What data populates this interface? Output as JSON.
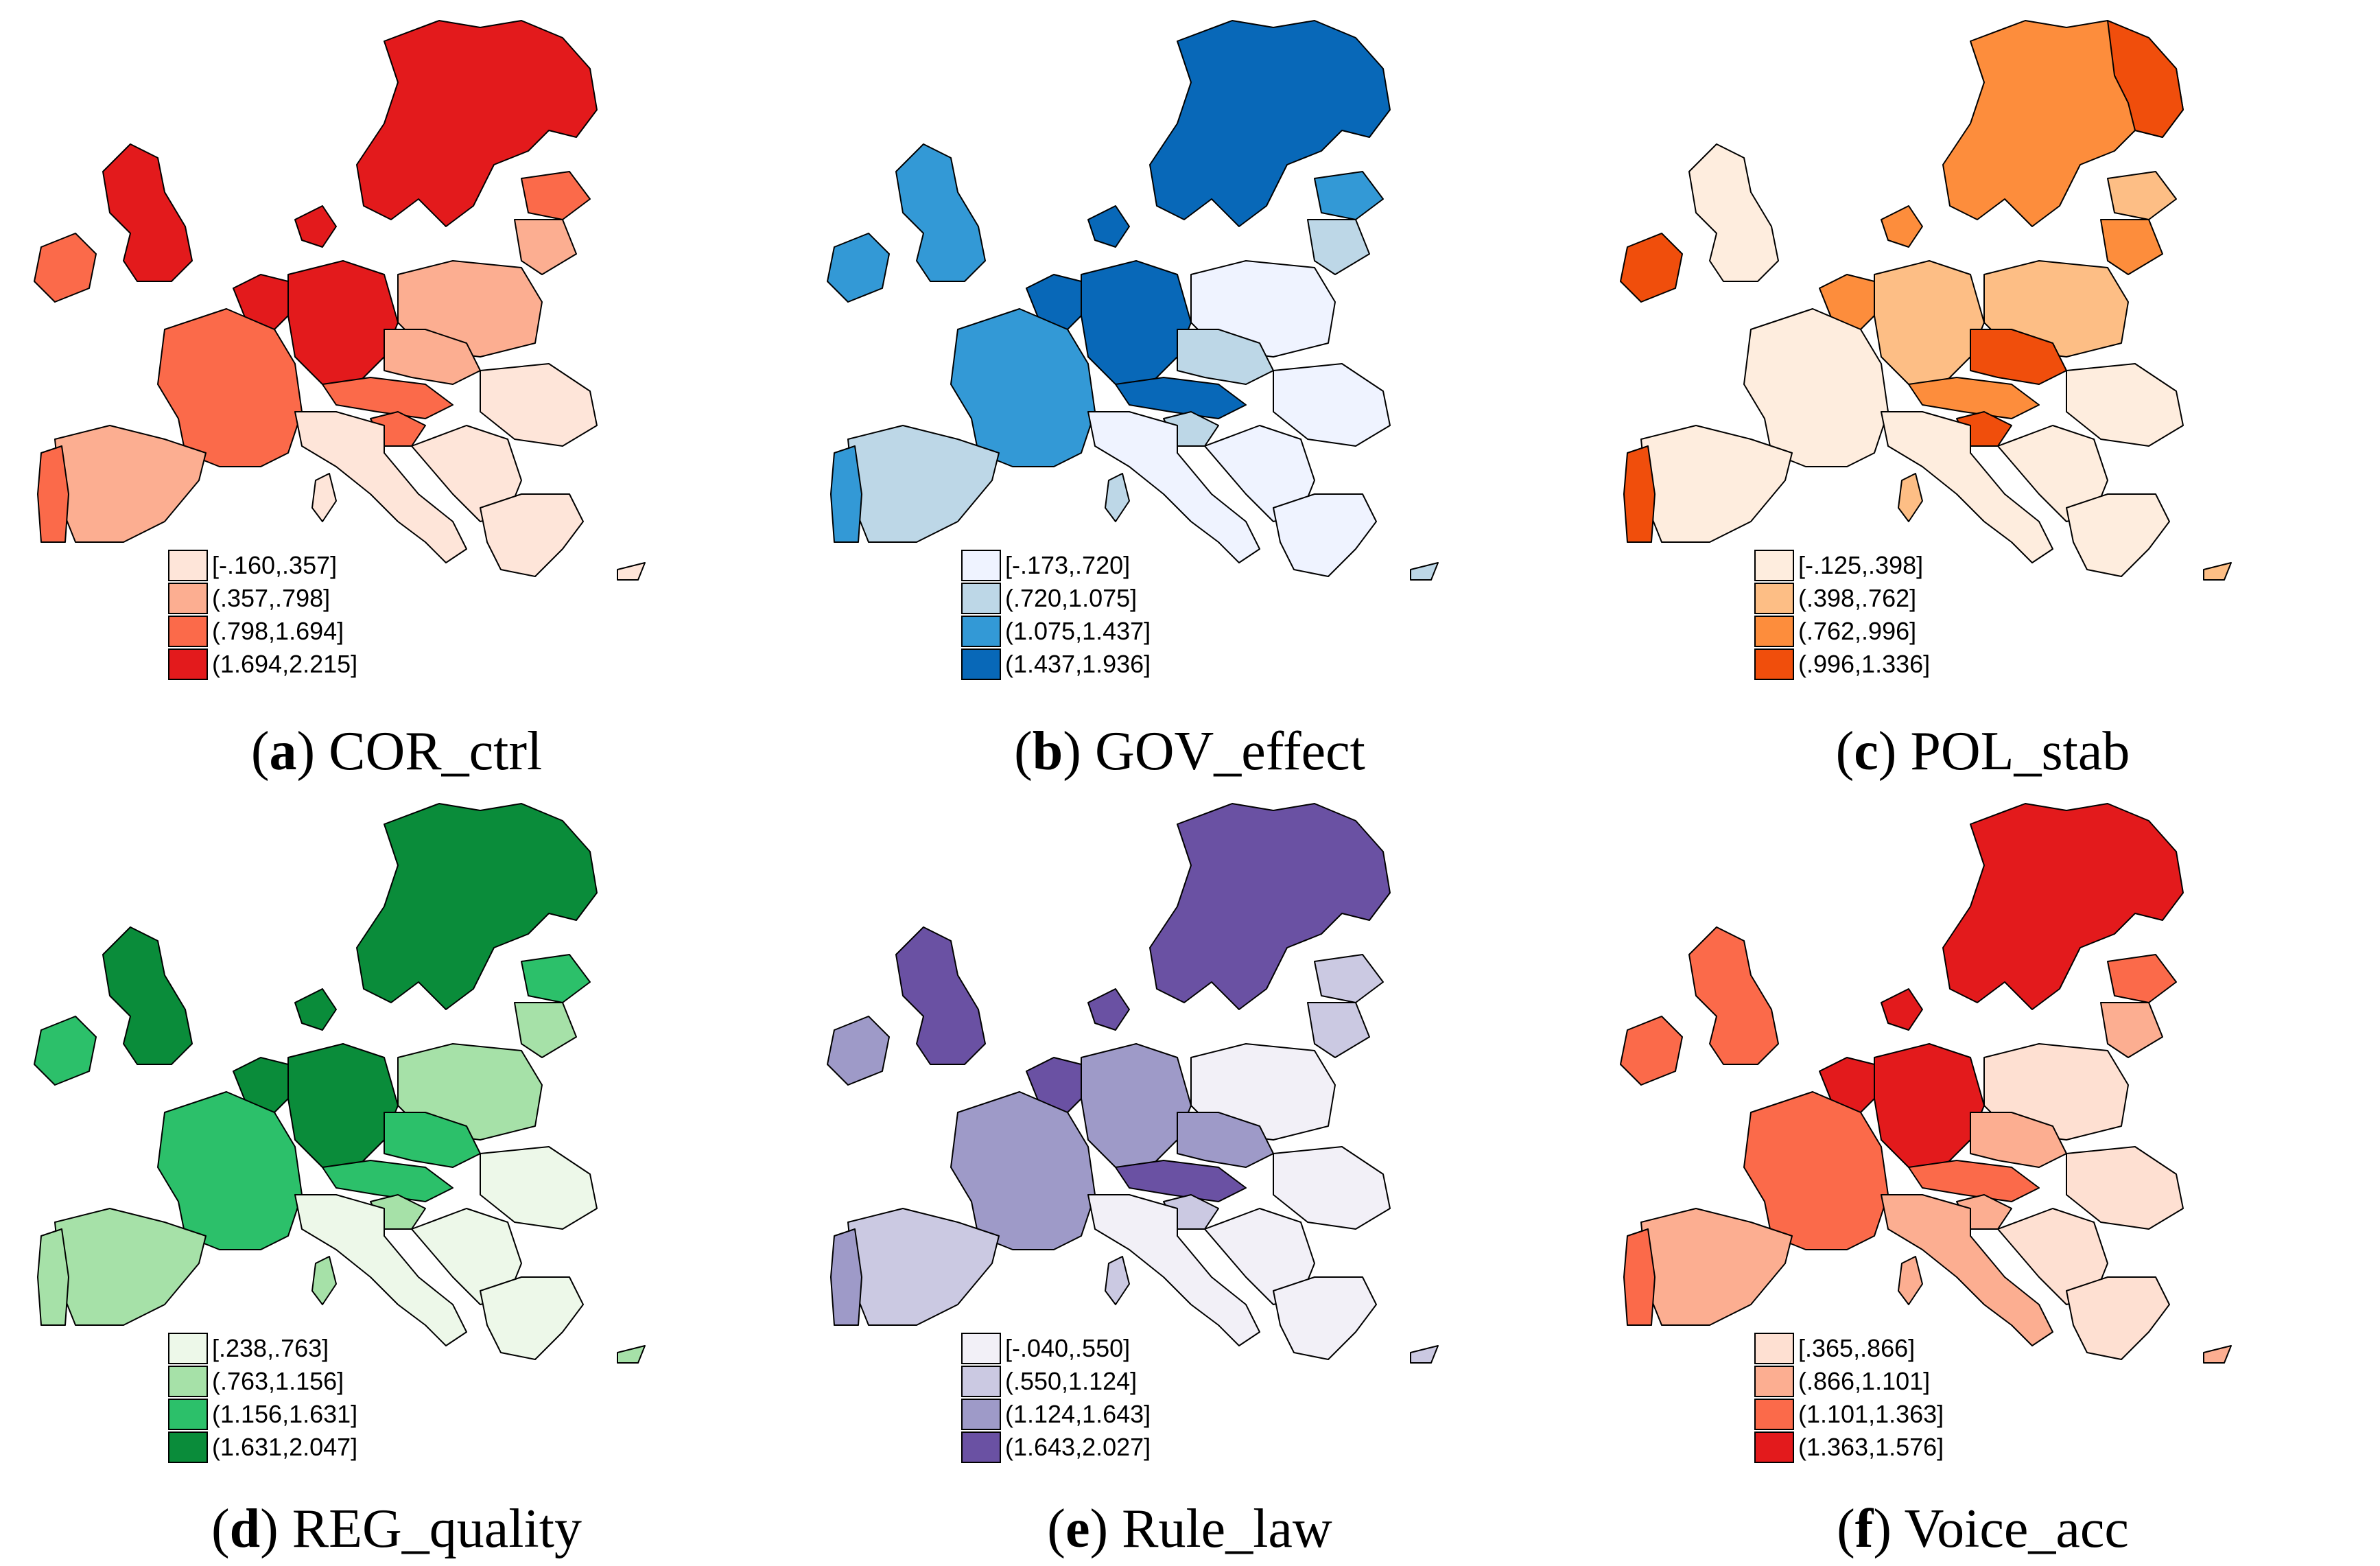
{
  "figure": {
    "panels": [
      {
        "letter": "a",
        "title": "COR_ctrl",
        "colors": [
          "#fee5d9",
          "#fcae91",
          "#fb6a4a",
          "#e31a1c"
        ],
        "legend": [
          "[-.160,.357]",
          "(.357,.798]",
          "(.798,1.694]",
          "(1.694,2.215]"
        ],
        "classes": {
          "nordic": 3,
          "uk": 3,
          "ireland": 2,
          "benelux": 3,
          "germany": 3,
          "denmark": 3,
          "france": 2,
          "iberia": 1,
          "portugal": 2,
          "poland": 1,
          "baltics_n": 2,
          "baltics_s": 1,
          "central": 1,
          "austria": 2,
          "slovenia": 2,
          "italy": 0,
          "balkans": 0,
          "romania": 0,
          "greece": 0,
          "islands": 0
        }
      },
      {
        "letter": "b",
        "title": "GOV_effect",
        "colors": [
          "#eff3ff",
          "#bdd7e7",
          "#3399d6",
          "#0868b8"
        ],
        "legend": [
          "[-.173,.720]",
          "(.720,1.075]",
          "(1.075,1.437]",
          "(1.437,1.936]"
        ],
        "classes": {
          "nordic": 3,
          "uk": 2,
          "ireland": 2,
          "benelux": 3,
          "germany": 3,
          "denmark": 3,
          "france": 2,
          "iberia": 1,
          "portugal": 2,
          "poland": 0,
          "baltics_n": 2,
          "baltics_s": 1,
          "central": 1,
          "austria": 3,
          "slovenia": 1,
          "italy": 0,
          "balkans": 0,
          "romania": 0,
          "greece": 0,
          "islands": 1
        }
      },
      {
        "letter": "c",
        "title": "POL_stab",
        "colors": [
          "#feedde",
          "#fdbe85",
          "#fd8d3c",
          "#f04e0c"
        ],
        "legend": [
          "[-.125,.398]",
          "(.398,.762]",
          "(.762,.996]",
          "(.996,1.336]"
        ],
        "classes": {
          "nordic": 2,
          "finland": 3,
          "uk": 0,
          "ireland": 3,
          "benelux": 2,
          "germany": 1,
          "denmark": 2,
          "france": 0,
          "iberia": 0,
          "portugal": 3,
          "poland": 1,
          "baltics_n": 1,
          "baltics_s": 2,
          "central": 3,
          "austria": 2,
          "slovenia": 3,
          "italy": 0,
          "balkans": 0,
          "romania": 0,
          "greece": 0,
          "islands": 1
        }
      },
      {
        "letter": "d",
        "title": "REG_quality",
        "colors": [
          "#edf8e9",
          "#a6e1a8",
          "#2cc06a",
          "#0a8c3a"
        ],
        "legend": [
          "[.238,.763]",
          "(.763,1.156]",
          "(1.156,1.631]",
          "(1.631,2.047]"
        ],
        "classes": {
          "nordic": 3,
          "uk": 3,
          "ireland": 2,
          "benelux": 3,
          "germany": 3,
          "denmark": 3,
          "france": 2,
          "iberia": 1,
          "portugal": 1,
          "poland": 1,
          "baltics_n": 2,
          "baltics_s": 1,
          "central": 2,
          "austria": 2,
          "slovenia": 1,
          "italy": 0,
          "balkans": 0,
          "romania": 0,
          "greece": 0,
          "islands": 1
        }
      },
      {
        "letter": "e",
        "title": "Rule_law",
        "colors": [
          "#f2f0f7",
          "#cbc9e2",
          "#9e9ac8",
          "#6a51a3"
        ],
        "legend": [
          "[-.040,.550]",
          "(.550,1.124]",
          "(1.124,1.643]",
          "(1.643,2.027]"
        ],
        "classes": {
          "nordic": 3,
          "uk": 3,
          "ireland": 2,
          "benelux": 3,
          "germany": 2,
          "denmark": 3,
          "france": 2,
          "iberia": 1,
          "portugal": 2,
          "poland": 0,
          "baltics_n": 1,
          "baltics_s": 1,
          "central": 2,
          "austria": 3,
          "slovenia": 1,
          "italy": 0,
          "balkans": 0,
          "romania": 0,
          "greece": 0,
          "islands": 1
        }
      },
      {
        "letter": "f",
        "title": "Voice_acc",
        "colors": [
          "#fee0d2",
          "#fcae91",
          "#fb6a4a",
          "#e31a1c"
        ],
        "legend": [
          "[.365,.866]",
          "(.866,1.101]",
          "(1.101,1.363]",
          "(1.363,1.576]"
        ],
        "classes": {
          "nordic": 3,
          "uk": 2,
          "ireland": 2,
          "benelux": 3,
          "germany": 3,
          "denmark": 3,
          "france": 2,
          "iberia": 1,
          "portugal": 2,
          "poland": 0,
          "baltics_n": 2,
          "baltics_s": 1,
          "central": 1,
          "austria": 2,
          "slovenia": 1,
          "italy": 1,
          "balkans": 0,
          "romania": 0,
          "greece": 0,
          "islands": 1
        }
      }
    ]
  }
}
